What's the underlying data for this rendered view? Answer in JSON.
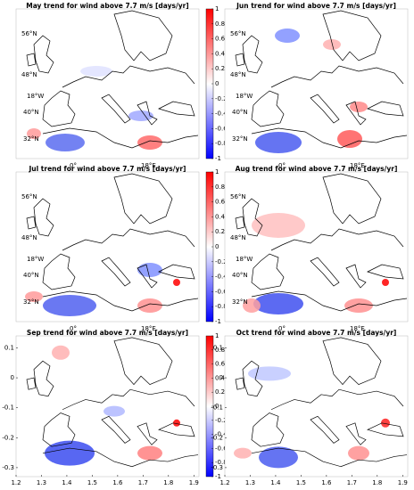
{
  "panels": [
    {
      "title": "May trend for wind above 7.7 m/s [days/yr]",
      "graticule_labels": [
        "56°N",
        "48°N",
        "18°W",
        "40°N",
        "32°N",
        "0°",
        "18°E"
      ]
    },
    {
      "title": "Jun trend for wind above 7.7 m/s [days/yr]",
      "graticule_labels": [
        "56°N",
        "48°N",
        "18°W",
        "40°N",
        "32°N",
        "0°",
        "18°E"
      ]
    },
    {
      "title": "Jul trend for wind above 7.7 m/s [days/yr]",
      "graticule_labels": [
        "56°N",
        "48°N",
        "18°W",
        "40°N",
        "32°N",
        "0°",
        "18°E"
      ]
    },
    {
      "title": "Aug trend for wind above 7.7 m/s [days/yr]",
      "graticule_labels": [
        "56°N",
        "48°N",
        "18°W",
        "40°N",
        "32°N",
        "0°",
        "18°E"
      ]
    },
    {
      "title": "Sep trend for wind above 7.7 m/s [days/yr]"
    },
    {
      "title": "Oct trend for wind above 7.7 m/s [days/yr]"
    }
  ],
  "colorbar": {
    "ylim": [
      -1,
      1
    ],
    "yticks": [
      1,
      0.8,
      0.6,
      0.4,
      0.2,
      0,
      -0.2,
      -0.4,
      -0.6,
      -0.8,
      -1
    ]
  },
  "bottom_axes": {
    "xlim": [
      1.2,
      1.92
    ],
    "xticks": [
      1.2,
      1.3,
      1.4,
      1.5,
      1.6,
      1.7,
      1.8,
      1.9
    ],
    "ylim": [
      -0.33,
      0.14
    ],
    "yticks": [
      0.1,
      0,
      -0.1,
      -0.2,
      -0.3
    ]
  }
}
